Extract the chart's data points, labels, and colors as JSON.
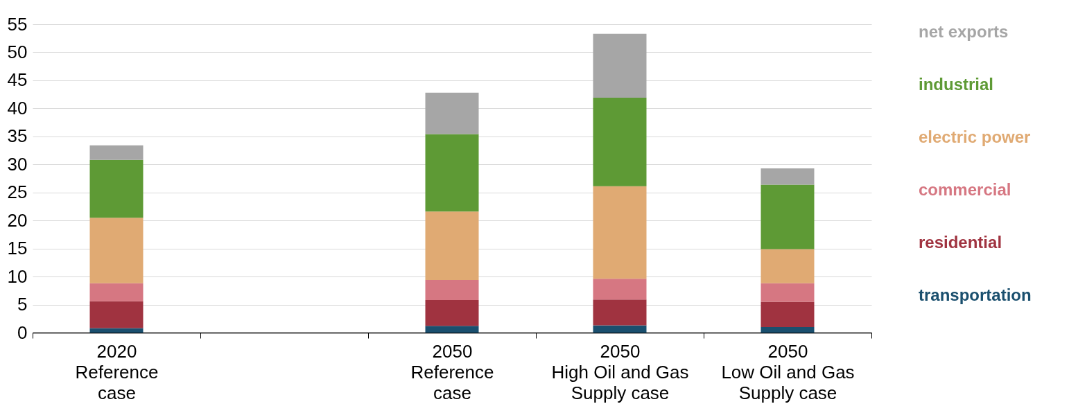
{
  "chart_data": {
    "type": "bar",
    "stacked": true,
    "categories": [
      "2020\nReference\ncase",
      null,
      "2050\nReference\ncase",
      "2050\nHigh Oil and Gas\nSupply case",
      "2050\nLow Oil and Gas\nSupply case"
    ],
    "series": [
      {
        "name": "transportation",
        "color": "#1a4f6e",
        "values": [
          0.8,
          null,
          1.2,
          1.3,
          1.0
        ]
      },
      {
        "name": "residential",
        "color": "#a03340",
        "values": [
          4.8,
          null,
          4.6,
          4.6,
          4.5
        ]
      },
      {
        "name": "commercial",
        "color": "#d67782",
        "values": [
          3.2,
          null,
          3.6,
          3.7,
          3.3
        ]
      },
      {
        "name": "electric power",
        "color": "#e0aa73",
        "values": [
          11.7,
          null,
          12.2,
          16.5,
          6.1
        ]
      },
      {
        "name": "industrial",
        "color": "#5e9a35",
        "values": [
          10.3,
          null,
          13.8,
          15.8,
          11.5
        ]
      },
      {
        "name": "net exports",
        "color": "#a6a6a6",
        "values": [
          2.6,
          null,
          7.4,
          11.4,
          2.9
        ]
      }
    ],
    "ylim": [
      0,
      55
    ],
    "yticks": [
      0,
      5,
      10,
      15,
      20,
      25,
      30,
      35,
      40,
      45,
      50,
      55
    ],
    "grid": "y",
    "legend": "right"
  }
}
